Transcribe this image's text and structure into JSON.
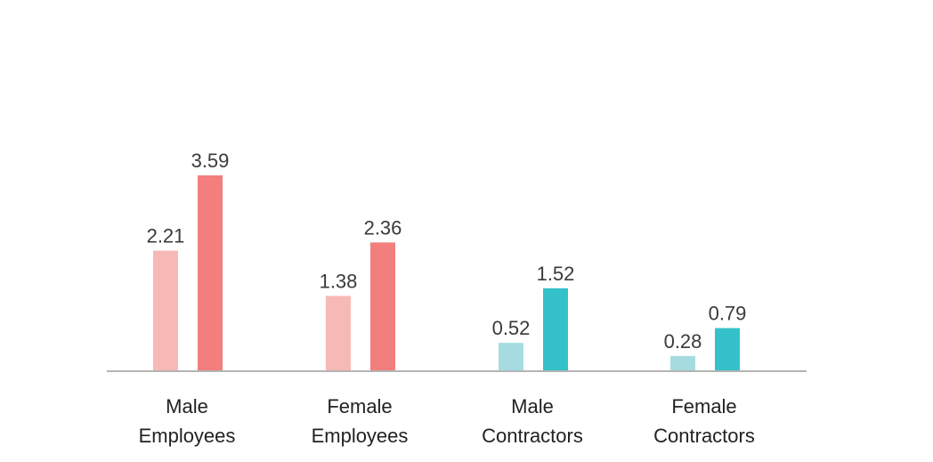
{
  "chart_data": {
    "type": "bar",
    "categories": [
      [
        "Male",
        "Employees"
      ],
      [
        "Female",
        "Employees"
      ],
      [
        "Male",
        "Contractors"
      ],
      [
        "Female",
        "Contractors"
      ]
    ],
    "series": [
      {
        "values": [
          2.21,
          1.38,
          0.52,
          0.28
        ],
        "labels": [
          "2.21",
          "1.38",
          "0.52",
          "0.28"
        ],
        "colors": [
          "#f7b9b5",
          "#f7b9b5",
          "#a6dce0",
          "#a6dce0"
        ]
      },
      {
        "values": [
          3.59,
          2.36,
          1.52,
          0.79
        ],
        "labels": [
          "3.59",
          "2.36",
          "1.52",
          "0.79"
        ],
        "colors": [
          "#f27e7e",
          "#f27e7e",
          "#35c1ca",
          "#35c1ca"
        ]
      }
    ],
    "ylim": [
      0,
      3.59
    ],
    "grid": false,
    "legend": "none",
    "axis_color": "#b4b4b4"
  }
}
